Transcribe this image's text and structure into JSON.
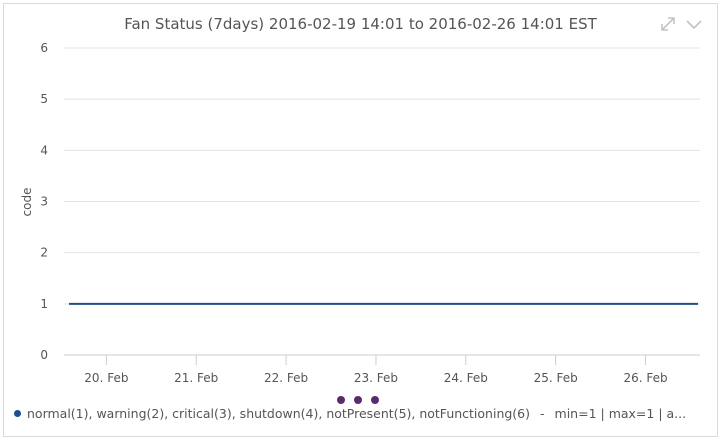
{
  "widget": {
    "title": "Fan Status (7days) 2016-02-19 14:01 to 2016-02-26 14:01 EST",
    "icons": {
      "expand": "expand-icon",
      "collapse": "chevron-down-icon"
    },
    "colors": {
      "line": "#1e4e8c",
      "grid": "#e3e3e3",
      "dots": "#5b2a6e"
    }
  },
  "legend": {
    "series_name": "normal(1), warning(2), critical(3), shutdown(4), notPresent(5), notFunctioning(6)",
    "separator": "-",
    "stats": "min=1 | max=1 | a..."
  },
  "chart_data": {
    "type": "line",
    "title": "Fan Status (7days) 2016-02-19 14:01 to 2016-02-26 14:01 EST",
    "xlabel": "",
    "ylabel": "code",
    "ylim": [
      0,
      6
    ],
    "y_ticks": [
      "0",
      "1",
      "2",
      "3",
      "4",
      "5",
      "6"
    ],
    "x_ticks": [
      "20. Feb",
      "21. Feb",
      "22. Feb",
      "23. Feb",
      "24. Feb",
      "25. Feb",
      "26. Feb"
    ],
    "x_range": [
      "2016-02-19 14:01",
      "2016-02-26 14:01"
    ],
    "grid": true,
    "series": [
      {
        "name": "normal(1), warning(2), critical(3), shutdown(4), notPresent(5), notFunctioning(6)",
        "x": [
          "2016-02-19 14:01",
          "2016-02-26 14:01"
        ],
        "values": [
          1,
          1
        ]
      }
    ]
  }
}
